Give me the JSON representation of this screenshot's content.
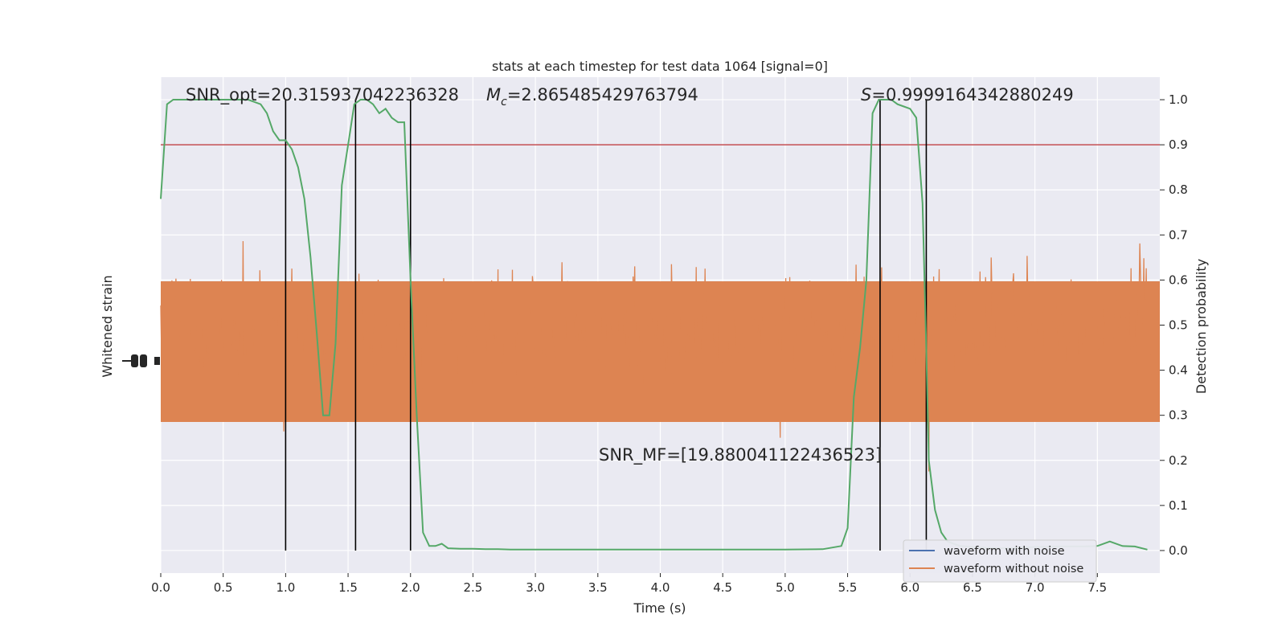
{
  "chart_data": {
    "type": "line",
    "title": "stats at each timestep for test data 1064 [signal=0]",
    "xlabel": "Time (s)",
    "ylabel_left": "Whitened strain",
    "ylabel_right": "Detection probability",
    "xlim": [
      0,
      8.0
    ],
    "ylim_right": [
      -0.05,
      1.05
    ],
    "x_ticks": [
      0.0,
      0.5,
      1.0,
      1.5,
      2.0,
      2.5,
      3.0,
      3.5,
      4.0,
      4.5,
      5.0,
      5.5,
      6.0,
      6.5,
      7.0,
      7.5
    ],
    "x_tick_labels": [
      "0.0",
      "0.5",
      "1.0",
      "1.5",
      "2.0",
      "2.5",
      "3.0",
      "3.5",
      "4.0",
      "4.5",
      "5.0",
      "5.5",
      "6.0",
      "6.5",
      "7.0",
      "7.5"
    ],
    "y_right_ticks": [
      0.0,
      0.1,
      0.2,
      0.3,
      0.4,
      0.5,
      0.6,
      0.7,
      0.8,
      0.9,
      1.0
    ],
    "y_right_tick_labels": [
      "0.0",
      "0.1",
      "0.2",
      "0.3",
      "0.4",
      "0.5",
      "0.6",
      "0.7",
      "0.8",
      "0.9",
      "1.0"
    ],
    "threshold": 0.9,
    "vlines": [
      1.0,
      1.56,
      2.0,
      5.76,
      6.13
    ],
    "annotations": {
      "snr_opt": "SNR_opt=20.315937042236328",
      "mc": "=2.865485429763794",
      "s": "=0.9999164342880249",
      "snr_mf": "SNR_MF=[19.880041122436523]"
    },
    "legend": [
      "waveform with noise",
      "waveform without noise"
    ],
    "legend_location": "lower right",
    "grid": true,
    "series": [
      {
        "name": "Detection probability",
        "color": "#55a868",
        "x": [
          0.0,
          0.05,
          0.1,
          0.2,
          0.3,
          0.4,
          0.5,
          0.6,
          0.7,
          0.8,
          0.85,
          0.9,
          0.95,
          1.0,
          1.05,
          1.1,
          1.15,
          1.2,
          1.25,
          1.3,
          1.35,
          1.4,
          1.45,
          1.5,
          1.55,
          1.6,
          1.65,
          1.7,
          1.75,
          1.8,
          1.85,
          1.9,
          1.95,
          2.0,
          2.05,
          2.1,
          2.15,
          2.2,
          2.25,
          2.3,
          2.4,
          2.5,
          2.6,
          2.7,
          2.8,
          3.0,
          3.5,
          4.0,
          4.5,
          5.0,
          5.3,
          5.45,
          5.5,
          5.55,
          5.6,
          5.65,
          5.7,
          5.75,
          5.8,
          5.85,
          5.9,
          5.95,
          6.0,
          6.05,
          6.1,
          6.13,
          6.15,
          6.2,
          6.25,
          6.3,
          6.35,
          6.4,
          6.5,
          6.6,
          6.7,
          6.8,
          7.0,
          7.2,
          7.4,
          7.5,
          7.6,
          7.7,
          7.8,
          7.9
        ],
        "values": [
          0.78,
          0.99,
          1.0,
          1.0,
          1.0,
          1.0,
          1.0,
          1.0,
          1.0,
          0.99,
          0.97,
          0.93,
          0.91,
          0.91,
          0.89,
          0.85,
          0.78,
          0.65,
          0.48,
          0.3,
          0.3,
          0.46,
          0.81,
          0.9,
          0.99,
          1.0,
          1.0,
          0.99,
          0.97,
          0.98,
          0.96,
          0.95,
          0.95,
          0.6,
          0.3,
          0.04,
          0.01,
          0.01,
          0.015,
          0.005,
          0.004,
          0.004,
          0.003,
          0.003,
          0.002,
          0.002,
          0.002,
          0.002,
          0.002,
          0.002,
          0.003,
          0.01,
          0.05,
          0.34,
          0.45,
          0.6,
          0.97,
          1.0,
          1.0,
          1.0,
          0.99,
          0.985,
          0.98,
          0.96,
          0.77,
          0.45,
          0.2,
          0.09,
          0.04,
          0.02,
          0.015,
          0.01,
          0.008,
          0.006,
          0.005,
          0.005,
          0.008,
          0.009,
          0.009,
          0.01,
          0.02,
          0.01,
          0.009,
          0.002
        ]
      },
      {
        "name": "waveform without noise",
        "color": "#dd8452",
        "values": []
      },
      {
        "name": "waveform with noise",
        "color": "#4c72b0",
        "values": []
      }
    ]
  },
  "colors": {
    "plot_bg": "#eaeaf2",
    "grid": "#ffffff",
    "noise": "#dd8452",
    "prob": "#55a868",
    "threshold": "#c44e52",
    "with_noise": "#4c72b0",
    "vline": "#000000"
  }
}
